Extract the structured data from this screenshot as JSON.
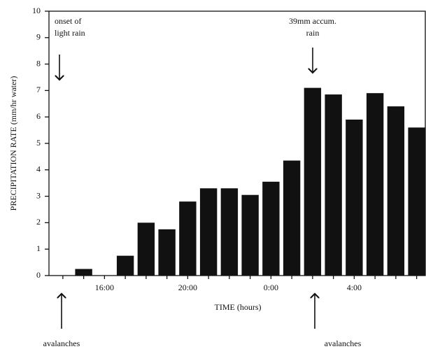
{
  "chart_data": {
    "type": "bar",
    "y_label": "PRECIPITATION RATE (mm/hr water)",
    "x_label": "TIME (hours)",
    "annotations": {
      "onset": [
        "onset of",
        "light rain"
      ],
      "accum": [
        "39mm accum.",
        "rain"
      ],
      "avalanches_1": "avalanches",
      "avalanches_2": "avalanches"
    },
    "categories": [
      null,
      null,
      "16:00",
      null,
      null,
      null,
      "20:00",
      null,
      null,
      null,
      "0:00",
      null,
      null,
      null,
      "4:00",
      null,
      null,
      null
    ],
    "values": [
      0,
      0.25,
      0,
      0.75,
      2.0,
      1.75,
      2.8,
      3.3,
      3.3,
      3.05,
      3.55,
      4.35,
      7.1,
      6.85,
      5.9,
      6.9,
      6.4,
      5.6
    ],
    "color": "#111111",
    "ylim": [
      0,
      10
    ],
    "yticks": [
      0,
      1,
      2,
      3,
      4,
      5,
      6,
      7,
      8,
      9,
      10
    ]
  }
}
